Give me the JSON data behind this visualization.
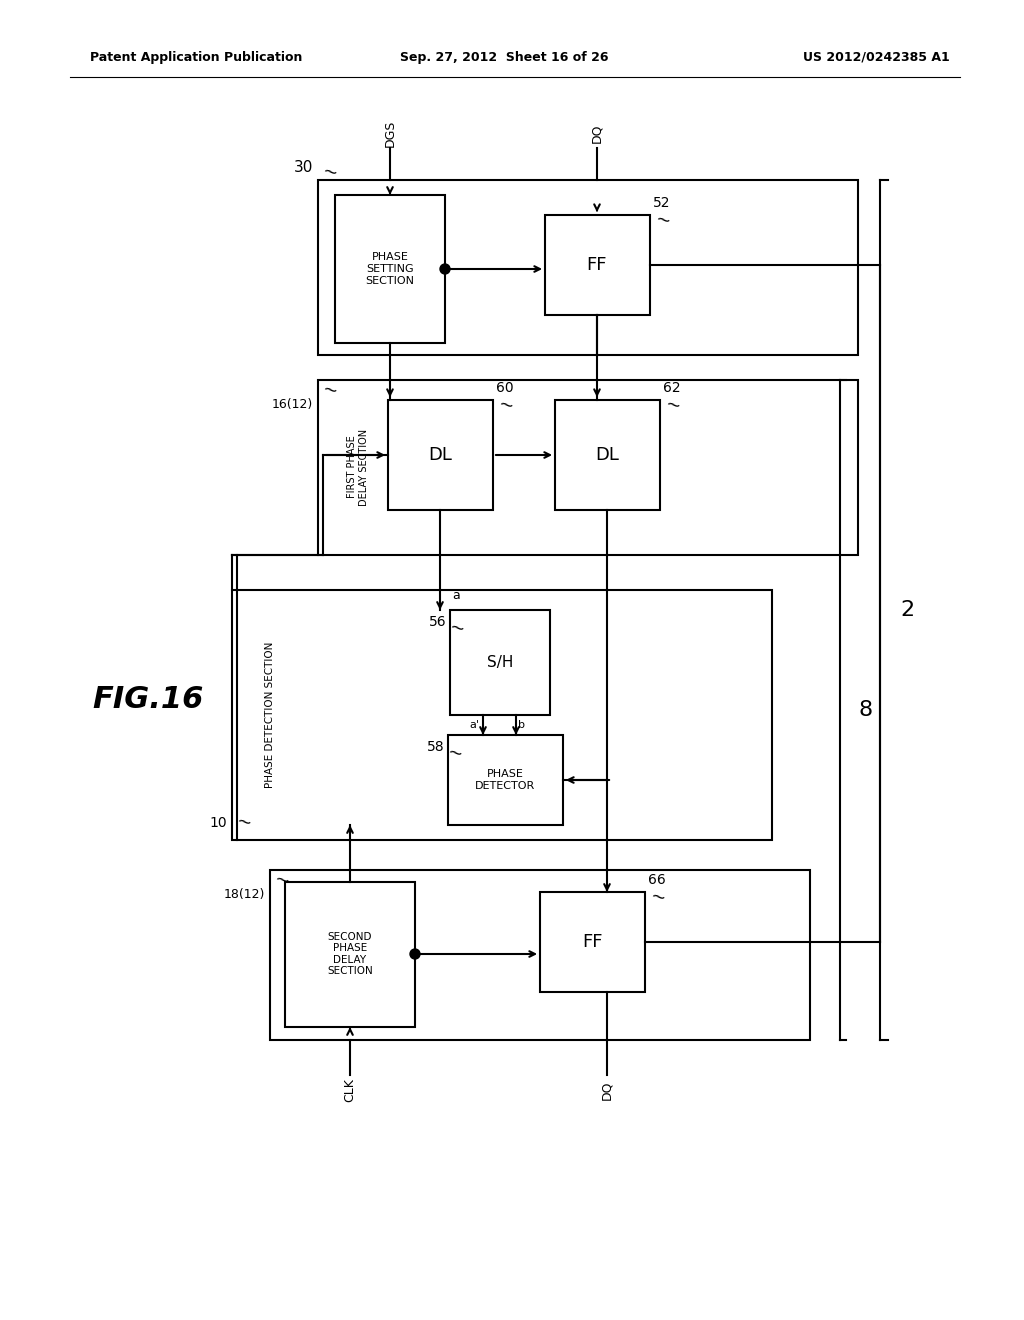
{
  "bg": "#ffffff",
  "header_left": "Patent Application Publication",
  "header_mid": "Sep. 27, 2012  Sheet 16 of 26",
  "header_right": "US 2012/0242385 A1",
  "fig_label": "FIG.16"
}
